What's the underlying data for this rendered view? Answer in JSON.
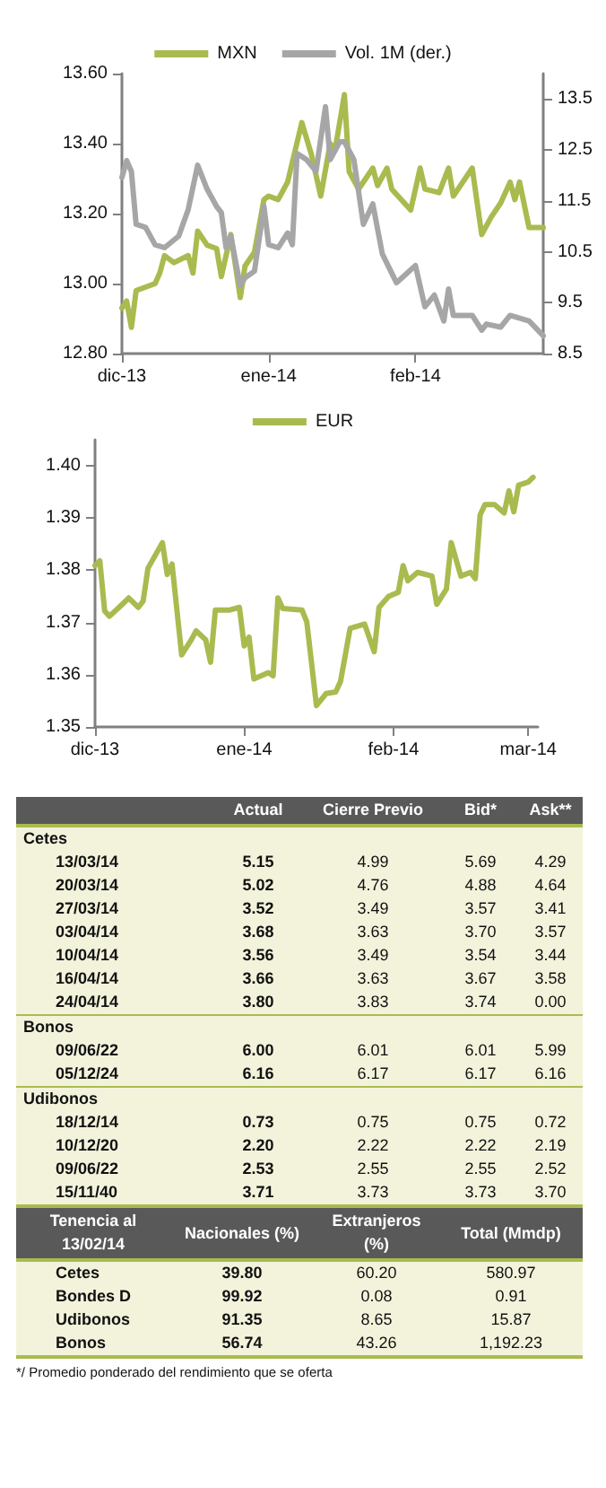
{
  "chart_data": [
    {
      "type": "line",
      "legend": "top",
      "marker": "none",
      "line_style": "solid",
      "xlim": [
        "2013-12-01",
        "2014-02-28"
      ],
      "xticks": [
        {
          "value": "2013-12-01",
          "label": "dic-13"
        },
        {
          "value": "2014-01-01",
          "label": "ene-14"
        },
        {
          "value": "2014-02-01",
          "label": "feb-14"
        }
      ],
      "ylim": [
        12.8,
        13.6
      ],
      "yticks": [
        {
          "value": 12.8,
          "label": "12.80"
        },
        {
          "value": 13.0,
          "label": "13.00"
        },
        {
          "value": 13.2,
          "label": "13.20"
        },
        {
          "value": 13.4,
          "label": "13.40"
        },
        {
          "value": 13.6,
          "label": "13.60"
        }
      ],
      "y2lim": [
        8.5,
        14.0
      ],
      "y2ticks": [
        8.5,
        9.5,
        10.5,
        11.5,
        12.5,
        13.5
      ],
      "series": [
        {
          "name": "MXN",
          "color": "#a9bb4f",
          "x": [
            "2013-12-01",
            "2013-12-02",
            "2013-12-03",
            "2013-12-04",
            "2013-12-08",
            "2013-12-09",
            "2013-12-10",
            "2013-12-12",
            "2013-12-15",
            "2013-12-16",
            "2013-12-17",
            "2013-12-19",
            "2013-12-21",
            "2013-12-22",
            "2013-12-24",
            "2013-12-26",
            "2013-12-27",
            "2013-12-29",
            "2013-12-31",
            "2014-01-01",
            "2014-01-03",
            "2014-01-05",
            "2014-01-08",
            "2014-01-10",
            "2014-01-12",
            "2014-01-14",
            "2014-01-15",
            "2014-01-17",
            "2014-01-18",
            "2014-01-20",
            "2014-01-23",
            "2014-01-24",
            "2014-01-26",
            "2014-01-27",
            "2014-01-31",
            "2014-02-02",
            "2014-02-03",
            "2014-02-06",
            "2014-02-08",
            "2014-02-09",
            "2014-02-13",
            "2014-02-15",
            "2014-02-17",
            "2014-02-19",
            "2014-02-21",
            "2014-02-22",
            "2014-02-23",
            "2014-02-25",
            "2014-02-28"
          ],
          "values": [
            12.93,
            12.95,
            12.875,
            12.98,
            13.0,
            13.03,
            13.08,
            13.06,
            13.08,
            13.03,
            13.15,
            13.11,
            13.1,
            13.02,
            13.14,
            12.96,
            13.05,
            13.09,
            13.24,
            13.25,
            13.24,
            13.29,
            13.46,
            13.37,
            13.25,
            13.4,
            13.38,
            13.54,
            13.32,
            13.27,
            13.33,
            13.28,
            13.33,
            13.27,
            13.21,
            13.33,
            13.27,
            13.26,
            13.33,
            13.25,
            13.33,
            13.14,
            13.19,
            13.23,
            13.29,
            13.24,
            13.29,
            13.16,
            13.16
          ]
        },
        {
          "name": "Vol. 1M (der.)",
          "color": "#a6a6a6",
          "axis": "y2",
          "x": [
            "2013-12-01",
            "2013-12-02",
            "2013-12-03",
            "2013-12-04",
            "2013-12-06",
            "2013-12-08",
            "2013-12-10",
            "2013-12-13",
            "2013-12-15",
            "2013-12-17",
            "2013-12-19",
            "2013-12-21",
            "2013-12-22",
            "2013-12-23",
            "2013-12-24",
            "2013-12-26",
            "2013-12-27",
            "2013-12-29",
            "2013-12-31",
            "2014-01-01",
            "2014-01-03",
            "2014-01-05",
            "2014-01-06",
            "2014-01-07",
            "2014-01-09",
            "2014-01-11",
            "2014-01-13",
            "2014-01-14",
            "2014-01-16",
            "2014-01-17",
            "2014-01-19",
            "2014-01-21",
            "2014-01-23",
            "2014-01-25",
            "2014-01-28",
            "2014-01-30",
            "2014-02-01",
            "2014-02-03",
            "2014-02-05",
            "2014-02-07",
            "2014-02-08",
            "2014-02-09",
            "2014-02-13",
            "2014-02-15",
            "2014-02-16",
            "2014-02-19",
            "2014-02-21",
            "2014-02-25",
            "2014-02-28"
          ],
          "values": [
            11.96,
            12.29,
            12.08,
            11.04,
            10.98,
            10.64,
            10.58,
            10.81,
            11.33,
            12.2,
            11.73,
            11.39,
            11.27,
            10.58,
            10.81,
            9.83,
            9.99,
            10.12,
            11.39,
            10.64,
            10.58,
            10.87,
            10.64,
            12.43,
            12.31,
            12.08,
            13.35,
            12.31,
            12.66,
            12.66,
            12.31,
            11.04,
            11.44,
            10.46,
            9.89,
            10.06,
            10.23,
            9.42,
            9.65,
            9.14,
            9.77,
            9.25,
            9.25,
            8.96,
            9.08,
            9.02,
            9.25,
            9.14,
            8.85
          ]
        }
      ]
    },
    {
      "type": "line",
      "legend": "top",
      "marker": "none",
      "line_style": "solid",
      "xlim": [
        "2013-12-01",
        "2014-03-03"
      ],
      "xticks": [
        {
          "value": "2013-12-01",
          "label": "dic-13"
        },
        {
          "value": "2014-01-01",
          "label": "ene-14"
        },
        {
          "value": "2014-02-01",
          "label": "feb-14"
        },
        {
          "value": "2014-03-01",
          "label": "mar-14"
        }
      ],
      "ylim": [
        1.35,
        1.405
      ],
      "yticks": [
        1.35,
        1.36,
        1.37,
        1.38,
        1.39,
        {
          "value": 1.4,
          "label": "1.40"
        }
      ],
      "series": [
        {
          "name": "EUR",
          "color": "#a9bb4f",
          "x": [
            "2013-12-01",
            "2013-12-02",
            "2013-12-03",
            "2013-12-04",
            "2013-12-06",
            "2013-12-08",
            "2013-12-10",
            "2013-12-11",
            "2013-12-12",
            "2013-12-15",
            "2013-12-16",
            "2013-12-17",
            "2013-12-19",
            "2013-12-21",
            "2013-12-22",
            "2013-12-24",
            "2013-12-25",
            "2013-12-26",
            "2013-12-29",
            "2013-12-31",
            "2014-01-01",
            "2014-01-02",
            "2014-01-03",
            "2014-01-06",
            "2014-01-07",
            "2014-01-08",
            "2014-01-09",
            "2014-01-13",
            "2014-01-14",
            "2014-01-16",
            "2014-01-18",
            "2014-01-20",
            "2014-01-21",
            "2014-01-23",
            "2014-01-26",
            "2014-01-28",
            "2014-01-29",
            "2014-01-31",
            "2014-02-02",
            "2014-02-03",
            "2014-02-04",
            "2014-02-06",
            "2014-02-09",
            "2014-02-10",
            "2014-02-12",
            "2014-02-13",
            "2014-02-15",
            "2014-02-17",
            "2014-02-18",
            "2014-02-19",
            "2014-02-20",
            "2014-02-22",
            "2014-02-24",
            "2014-02-25",
            "2014-02-26",
            "2014-02-27",
            "2014-03-01",
            "2014-03-02"
          ],
          "values": [
            1.3809,
            1.3818,
            1.3722,
            1.3712,
            1.3729,
            1.3747,
            1.3729,
            1.3741,
            1.3804,
            1.3853,
            1.3792,
            1.3812,
            1.3638,
            1.3667,
            1.3684,
            1.3667,
            1.3624,
            1.3724,
            1.3724,
            1.3729,
            1.3655,
            1.3672,
            1.3592,
            1.3604,
            1.3598,
            1.3747,
            1.3727,
            1.3724,
            1.3701,
            1.3541,
            1.3564,
            1.3567,
            1.3587,
            1.3689,
            1.3697,
            1.3644,
            1.3729,
            1.375,
            1.3758,
            1.3809,
            1.378,
            1.3796,
            1.3789,
            1.3735,
            1.3764,
            1.3853,
            1.3789,
            1.3796,
            1.3784,
            1.3906,
            1.3926,
            1.3926,
            1.391,
            1.3952,
            1.3912,
            1.3963,
            1.3969,
            1.3978
          ]
        }
      ]
    },
    {
      "type": "other",
      "categories": [
        "Actual",
        "Cierre Previo",
        "Bid*",
        "Ask**"
      ],
      "y_categories": [
        "Cetes",
        "13/03/14",
        "20/03/14",
        "27/03/14",
        "03/04/14",
        "10/04/14",
        "16/04/14",
        "24/04/14",
        "Bonos",
        "09/06/22",
        "05/12/24",
        "Udibonos",
        "18/12/14",
        "10/12/20",
        "09/06/22",
        "15/11/40"
      ],
      "cell_labels": [
        [
          null,
          null,
          null,
          null
        ],
        [
          "5.15",
          "4.99",
          "5.69",
          "4.29"
        ],
        [
          "5.02",
          "4.76",
          "4.88",
          "4.64"
        ],
        [
          "3.52",
          "3.49",
          "3.57",
          "3.41"
        ],
        [
          "3.68",
          "3.63",
          "3.70",
          "3.57"
        ],
        [
          "3.56",
          "3.49",
          "3.54",
          "3.44"
        ],
        [
          "3.66",
          "3.63",
          "3.67",
          "3.58"
        ],
        [
          "3.80",
          "3.83",
          "3.74",
          "0.00"
        ],
        [
          null,
          null,
          null,
          null
        ],
        [
          "6.00",
          "6.01",
          "6.01",
          "5.99"
        ],
        [
          "6.16",
          "6.17",
          "6.17",
          "6.16"
        ],
        [
          null,
          null,
          null,
          null
        ],
        [
          "0.73",
          "0.75",
          "0.75",
          "0.72"
        ],
        [
          "2.20",
          "2.22",
          "2.22",
          "2.19"
        ],
        [
          "2.53",
          "2.55",
          "2.55",
          "2.52"
        ],
        [
          "3.71",
          "3.73",
          "3.73",
          "3.70"
        ]
      ]
    },
    {
      "type": "other",
      "ylabel": "Tenencia al 13/02/14",
      "categories": [
        "Nacionales (%)",
        "Extranjeros (%)",
        "Total (Mmdp)"
      ],
      "y_categories": [
        "Cetes",
        "Bondes D",
        "Udibonos",
        "Bonos"
      ],
      "cell_labels": [
        [
          "39.80",
          "60.20",
          "580.97"
        ],
        [
          "99.92",
          "0.08",
          "0.91"
        ],
        [
          "91.35",
          "8.65",
          "15.87"
        ],
        [
          "56.74",
          "43.26",
          "1,192.23"
        ]
      ],
      "annotations": [
        "*/ Promedio ponderado del rendimiento que se oferta"
      ]
    }
  ]
}
